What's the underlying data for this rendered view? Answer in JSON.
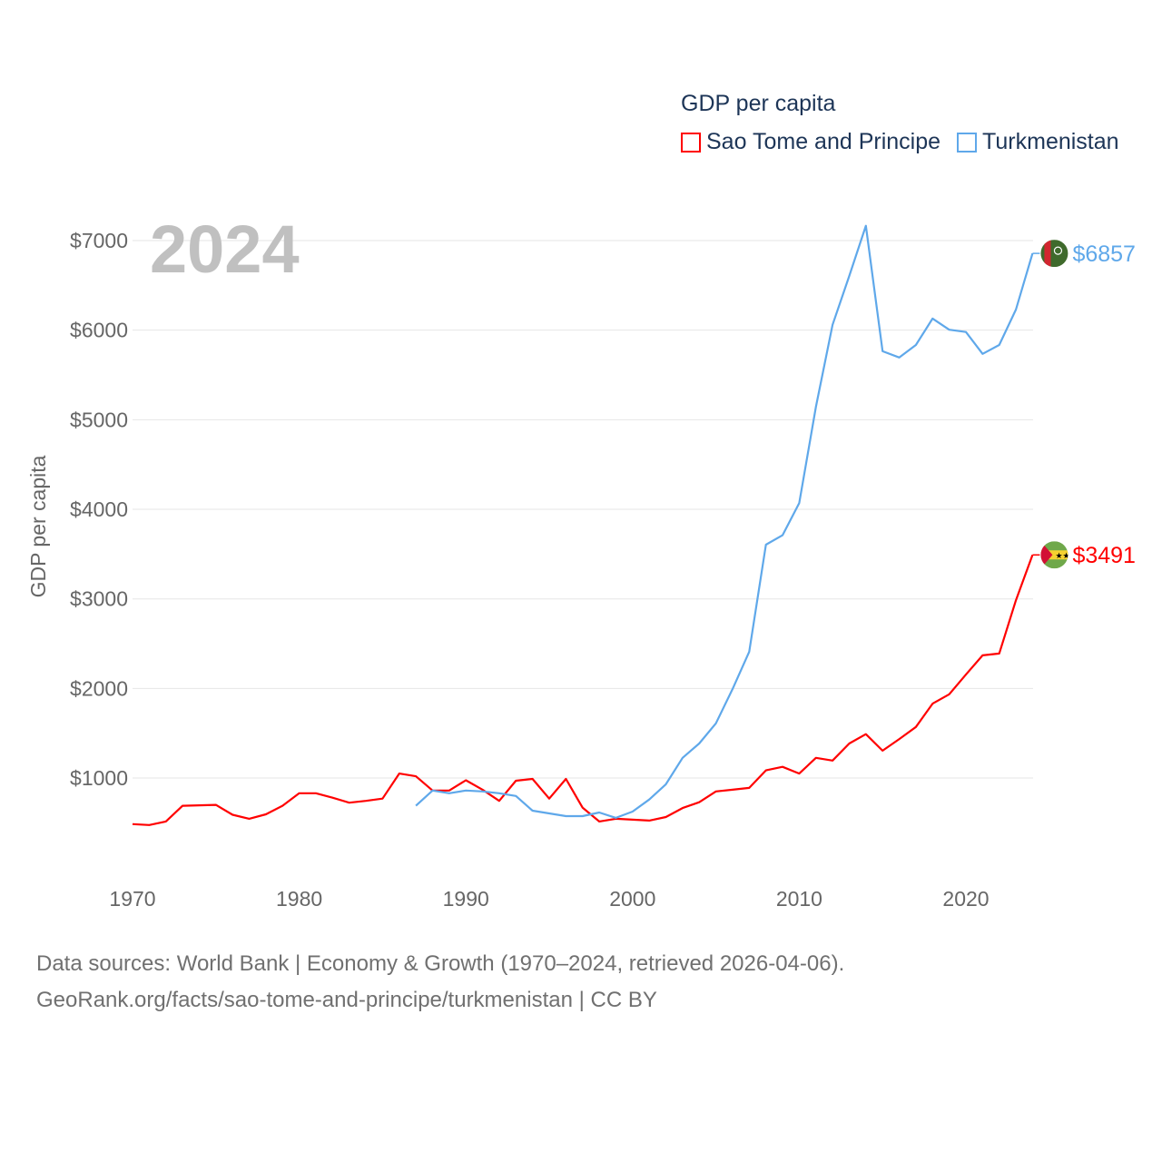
{
  "chart_data": {
    "type": "line",
    "title": "GDP per capita",
    "ylabel": "GDP per capita",
    "xlabel": "",
    "year_label": "2024",
    "xlim": [
      1970,
      2024
    ],
    "ylim": [
      0,
      7300
    ],
    "x_ticks": [
      1970,
      1980,
      1990,
      2000,
      2010,
      2020
    ],
    "y_ticks": [
      1000,
      2000,
      3000,
      4000,
      5000,
      6000,
      7000
    ],
    "y_tick_labels": [
      "$1000",
      "$2000",
      "$3000",
      "$4000",
      "$5000",
      "$6000",
      "$7000"
    ],
    "grid": true,
    "legend_position": "top-right",
    "series": [
      {
        "name": "Sao Tome and Principe",
        "color": "#ff0000",
        "end_label": "$3491",
        "flag": "sao-tome-flag",
        "start_year": 1970,
        "values": [
          485,
          475,
          515,
          690,
          695,
          700,
          590,
          545,
          595,
          690,
          830,
          830,
          780,
          725,
          745,
          770,
          1050,
          1020,
          860,
          860,
          975,
          870,
          745,
          970,
          990,
          770,
          990,
          670,
          515,
          545,
          535,
          525,
          565,
          665,
          730,
          850,
          870,
          890,
          1085,
          1125,
          1050,
          1225,
          1195,
          1385,
          1490,
          1305,
          1435,
          1570,
          1830,
          1935,
          2155,
          2370,
          2390,
          2985,
          3491
        ]
      },
      {
        "name": "Turkmenistan",
        "color": "#5fa8ea",
        "end_label": "$6857",
        "flag": "turkmenistan-flag",
        "start_year": 1987,
        "values": [
          690,
          860,
          830,
          860,
          850,
          830,
          800,
          635,
          605,
          575,
          575,
          615,
          555,
          625,
          760,
          930,
          1225,
          1385,
          1610,
          1995,
          2410,
          3605,
          3710,
          4070,
          5145,
          6060,
          6605,
          7165,
          5765,
          5695,
          5835,
          6130,
          6005,
          5980,
          5735,
          5835,
          6230,
          6857
        ]
      }
    ]
  },
  "footer": {
    "line1": "Data sources: World Bank | Economy & Growth (1970–2024, retrieved 2026-04-06).",
    "line2": "GeoRank.org/facts/sao-tome-and-principe/turkmenistan | CC BY"
  }
}
